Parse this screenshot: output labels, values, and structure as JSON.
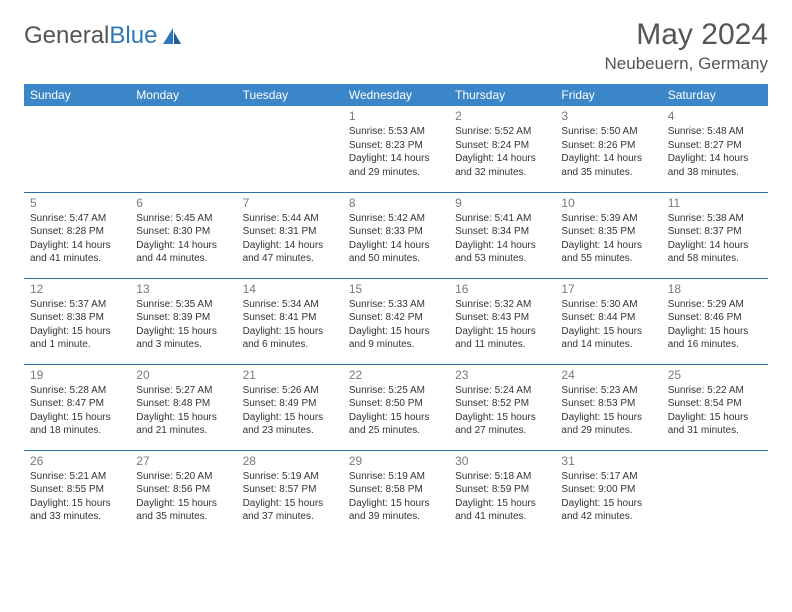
{
  "brand": {
    "part1": "General",
    "part2": "Blue"
  },
  "title": "May 2024",
  "location": "Neubeuern, Germany",
  "colors": {
    "header_bg": "#3a86c8",
    "header_text": "#ffffff",
    "border": "#2e6da4",
    "daynum": "#7a7a7a",
    "info_text": "#343434",
    "brand_gray": "#555555",
    "brand_blue": "#2e77b8"
  },
  "weekdays": [
    "Sunday",
    "Monday",
    "Tuesday",
    "Wednesday",
    "Thursday",
    "Friday",
    "Saturday"
  ],
  "weeks": [
    [
      null,
      null,
      null,
      {
        "n": "1",
        "sr": "5:53 AM",
        "ss": "8:23 PM",
        "dl": "14 hours and 29 minutes."
      },
      {
        "n": "2",
        "sr": "5:52 AM",
        "ss": "8:24 PM",
        "dl": "14 hours and 32 minutes."
      },
      {
        "n": "3",
        "sr": "5:50 AM",
        "ss": "8:26 PM",
        "dl": "14 hours and 35 minutes."
      },
      {
        "n": "4",
        "sr": "5:48 AM",
        "ss": "8:27 PM",
        "dl": "14 hours and 38 minutes."
      }
    ],
    [
      {
        "n": "5",
        "sr": "5:47 AM",
        "ss": "8:28 PM",
        "dl": "14 hours and 41 minutes."
      },
      {
        "n": "6",
        "sr": "5:45 AM",
        "ss": "8:30 PM",
        "dl": "14 hours and 44 minutes."
      },
      {
        "n": "7",
        "sr": "5:44 AM",
        "ss": "8:31 PM",
        "dl": "14 hours and 47 minutes."
      },
      {
        "n": "8",
        "sr": "5:42 AM",
        "ss": "8:33 PM",
        "dl": "14 hours and 50 minutes."
      },
      {
        "n": "9",
        "sr": "5:41 AM",
        "ss": "8:34 PM",
        "dl": "14 hours and 53 minutes."
      },
      {
        "n": "10",
        "sr": "5:39 AM",
        "ss": "8:35 PM",
        "dl": "14 hours and 55 minutes."
      },
      {
        "n": "11",
        "sr": "5:38 AM",
        "ss": "8:37 PM",
        "dl": "14 hours and 58 minutes."
      }
    ],
    [
      {
        "n": "12",
        "sr": "5:37 AM",
        "ss": "8:38 PM",
        "dl": "15 hours and 1 minute."
      },
      {
        "n": "13",
        "sr": "5:35 AM",
        "ss": "8:39 PM",
        "dl": "15 hours and 3 minutes."
      },
      {
        "n": "14",
        "sr": "5:34 AM",
        "ss": "8:41 PM",
        "dl": "15 hours and 6 minutes."
      },
      {
        "n": "15",
        "sr": "5:33 AM",
        "ss": "8:42 PM",
        "dl": "15 hours and 9 minutes."
      },
      {
        "n": "16",
        "sr": "5:32 AM",
        "ss": "8:43 PM",
        "dl": "15 hours and 11 minutes."
      },
      {
        "n": "17",
        "sr": "5:30 AM",
        "ss": "8:44 PM",
        "dl": "15 hours and 14 minutes."
      },
      {
        "n": "18",
        "sr": "5:29 AM",
        "ss": "8:46 PM",
        "dl": "15 hours and 16 minutes."
      }
    ],
    [
      {
        "n": "19",
        "sr": "5:28 AM",
        "ss": "8:47 PM",
        "dl": "15 hours and 18 minutes."
      },
      {
        "n": "20",
        "sr": "5:27 AM",
        "ss": "8:48 PM",
        "dl": "15 hours and 21 minutes."
      },
      {
        "n": "21",
        "sr": "5:26 AM",
        "ss": "8:49 PM",
        "dl": "15 hours and 23 minutes."
      },
      {
        "n": "22",
        "sr": "5:25 AM",
        "ss": "8:50 PM",
        "dl": "15 hours and 25 minutes."
      },
      {
        "n": "23",
        "sr": "5:24 AM",
        "ss": "8:52 PM",
        "dl": "15 hours and 27 minutes."
      },
      {
        "n": "24",
        "sr": "5:23 AM",
        "ss": "8:53 PM",
        "dl": "15 hours and 29 minutes."
      },
      {
        "n": "25",
        "sr": "5:22 AM",
        "ss": "8:54 PM",
        "dl": "15 hours and 31 minutes."
      }
    ],
    [
      {
        "n": "26",
        "sr": "5:21 AM",
        "ss": "8:55 PM",
        "dl": "15 hours and 33 minutes."
      },
      {
        "n": "27",
        "sr": "5:20 AM",
        "ss": "8:56 PM",
        "dl": "15 hours and 35 minutes."
      },
      {
        "n": "28",
        "sr": "5:19 AM",
        "ss": "8:57 PM",
        "dl": "15 hours and 37 minutes."
      },
      {
        "n": "29",
        "sr": "5:19 AM",
        "ss": "8:58 PM",
        "dl": "15 hours and 39 minutes."
      },
      {
        "n": "30",
        "sr": "5:18 AM",
        "ss": "8:59 PM",
        "dl": "15 hours and 41 minutes."
      },
      {
        "n": "31",
        "sr": "5:17 AM",
        "ss": "9:00 PM",
        "dl": "15 hours and 42 minutes."
      },
      null
    ]
  ],
  "labels": {
    "sunrise": "Sunrise: ",
    "sunset": "Sunset: ",
    "daylight": "Daylight: "
  }
}
